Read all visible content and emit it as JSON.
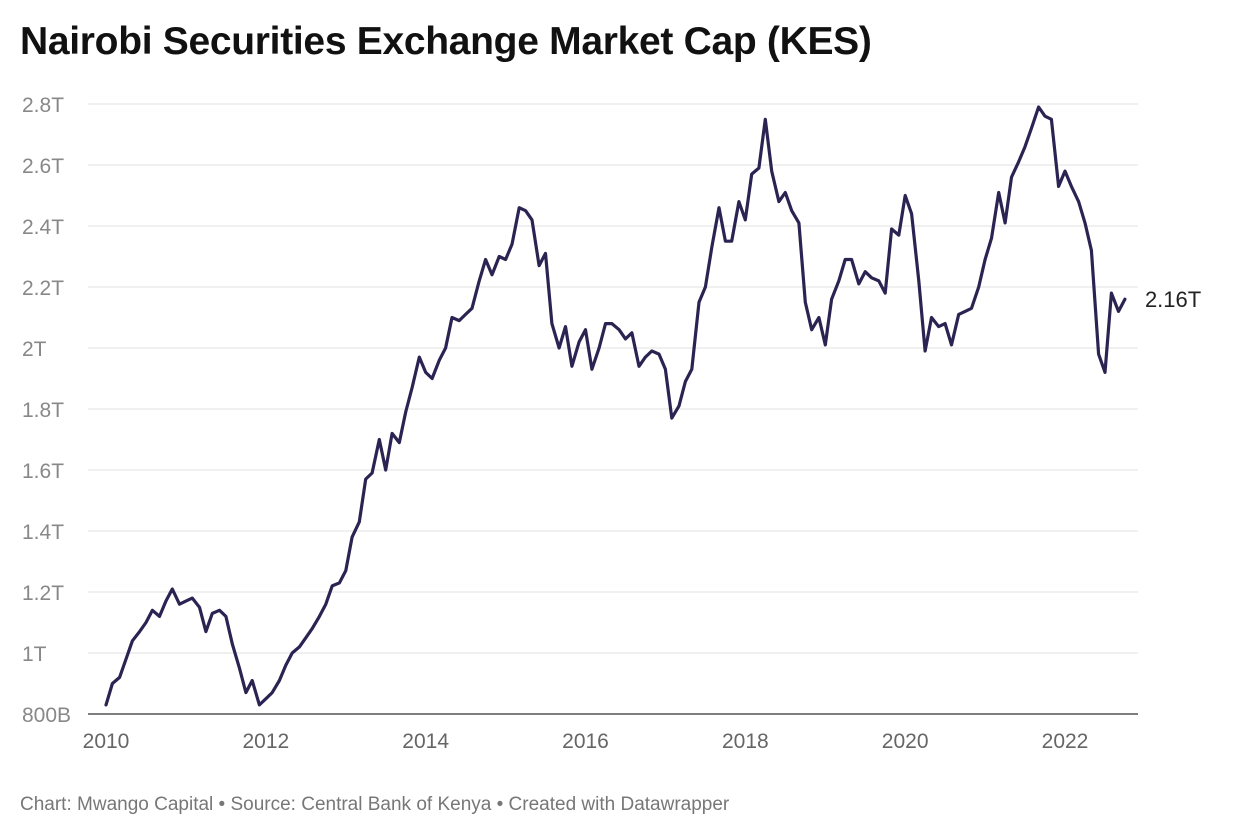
{
  "chart_data": {
    "type": "line",
    "title": "Nairobi Securities Exchange Market Cap (KES)",
    "footer": "Chart: Mwango Capital • Source: Central Bank of Kenya • Created with Datawrapper",
    "xlabel": "",
    "ylabel": "",
    "xlim": [
      2010,
      2023
    ],
    "ylim": [
      0.8,
      2.8
    ],
    "grid": "horizontal",
    "line_color": "#2b2452",
    "y_ticks": [
      {
        "value": 0.8,
        "label": "800B"
      },
      {
        "value": 1.0,
        "label": "1T"
      },
      {
        "value": 1.2,
        "label": "1.2T"
      },
      {
        "value": 1.4,
        "label": "1.4T"
      },
      {
        "value": 1.6,
        "label": "1.6T"
      },
      {
        "value": 1.8,
        "label": "1.8T"
      },
      {
        "value": 2.0,
        "label": "2T"
      },
      {
        "value": 2.2,
        "label": "2.2T"
      },
      {
        "value": 2.4,
        "label": "2.4T"
      },
      {
        "value": 2.6,
        "label": "2.6T"
      },
      {
        "value": 2.8,
        "label": "2.8T"
      }
    ],
    "x_ticks": [
      {
        "value": 2010,
        "label": "2010"
      },
      {
        "value": 2012,
        "label": "2012"
      },
      {
        "value": 2014,
        "label": "2014"
      },
      {
        "value": 2016,
        "label": "2016"
      },
      {
        "value": 2018,
        "label": "2018"
      },
      {
        "value": 2020,
        "label": "2020"
      },
      {
        "value": 2022,
        "label": "2022"
      }
    ],
    "end_label": "2.16T",
    "series": [
      {
        "points": [
          [
            2010.0,
            0.83
          ],
          [
            2010.08,
            0.9
          ],
          [
            2010.17,
            0.92
          ],
          [
            2010.25,
            0.98
          ],
          [
            2010.33,
            1.04
          ],
          [
            2010.42,
            1.07
          ],
          [
            2010.5,
            1.1
          ],
          [
            2010.58,
            1.14
          ],
          [
            2010.67,
            1.12
          ],
          [
            2010.75,
            1.17
          ],
          [
            2010.83,
            1.21
          ],
          [
            2010.92,
            1.16
          ],
          [
            2011.0,
            1.17
          ],
          [
            2011.08,
            1.18
          ],
          [
            2011.17,
            1.15
          ],
          [
            2011.25,
            1.07
          ],
          [
            2011.33,
            1.13
          ],
          [
            2011.42,
            1.14
          ],
          [
            2011.5,
            1.12
          ],
          [
            2011.58,
            1.03
          ],
          [
            2011.67,
            0.95
          ],
          [
            2011.75,
            0.87
          ],
          [
            2011.83,
            0.91
          ],
          [
            2011.92,
            0.83
          ],
          [
            2012.0,
            0.85
          ],
          [
            2012.08,
            0.87
          ],
          [
            2012.17,
            0.91
          ],
          [
            2012.25,
            0.96
          ],
          [
            2012.33,
            1.0
          ],
          [
            2012.42,
            1.02
          ],
          [
            2012.5,
            1.05
          ],
          [
            2012.58,
            1.08
          ],
          [
            2012.67,
            1.12
          ],
          [
            2012.75,
            1.16
          ],
          [
            2012.83,
            1.22
          ],
          [
            2012.92,
            1.23
          ],
          [
            2013.0,
            1.27
          ],
          [
            2013.08,
            1.38
          ],
          [
            2013.17,
            1.43
          ],
          [
            2013.25,
            1.57
          ],
          [
            2013.33,
            1.59
          ],
          [
            2013.42,
            1.7
          ],
          [
            2013.5,
            1.6
          ],
          [
            2013.58,
            1.72
          ],
          [
            2013.67,
            1.69
          ],
          [
            2013.75,
            1.79
          ],
          [
            2013.83,
            1.87
          ],
          [
            2013.92,
            1.97
          ],
          [
            2014.0,
            1.92
          ],
          [
            2014.08,
            1.9
          ],
          [
            2014.17,
            1.96
          ],
          [
            2014.25,
            2.0
          ],
          [
            2014.33,
            2.1
          ],
          [
            2014.42,
            2.09
          ],
          [
            2014.5,
            2.11
          ],
          [
            2014.58,
            2.13
          ],
          [
            2014.67,
            2.22
          ],
          [
            2014.75,
            2.29
          ],
          [
            2014.83,
            2.24
          ],
          [
            2014.92,
            2.3
          ],
          [
            2015.0,
            2.29
          ],
          [
            2015.08,
            2.34
          ],
          [
            2015.17,
            2.46
          ],
          [
            2015.25,
            2.45
          ],
          [
            2015.33,
            2.42
          ],
          [
            2015.42,
            2.27
          ],
          [
            2015.5,
            2.31
          ],
          [
            2015.58,
            2.08
          ],
          [
            2015.67,
            2.0
          ],
          [
            2015.75,
            2.07
          ],
          [
            2015.83,
            1.94
          ],
          [
            2015.92,
            2.02
          ],
          [
            2016.0,
            2.06
          ],
          [
            2016.08,
            1.93
          ],
          [
            2016.17,
            2.0
          ],
          [
            2016.25,
            2.08
          ],
          [
            2016.33,
            2.08
          ],
          [
            2016.42,
            2.06
          ],
          [
            2016.5,
            2.03
          ],
          [
            2016.58,
            2.05
          ],
          [
            2016.67,
            1.94
          ],
          [
            2016.75,
            1.97
          ],
          [
            2016.83,
            1.99
          ],
          [
            2016.92,
            1.98
          ],
          [
            2017.0,
            1.93
          ],
          [
            2017.08,
            1.77
          ],
          [
            2017.17,
            1.81
          ],
          [
            2017.25,
            1.89
          ],
          [
            2017.33,
            1.93
          ],
          [
            2017.42,
            2.15
          ],
          [
            2017.5,
            2.2
          ],
          [
            2017.58,
            2.33
          ],
          [
            2017.67,
            2.46
          ],
          [
            2017.75,
            2.35
          ],
          [
            2017.83,
            2.35
          ],
          [
            2017.92,
            2.48
          ],
          [
            2018.0,
            2.42
          ],
          [
            2018.08,
            2.57
          ],
          [
            2018.17,
            2.59
          ],
          [
            2018.25,
            2.75
          ],
          [
            2018.33,
            2.58
          ],
          [
            2018.42,
            2.48
          ],
          [
            2018.5,
            2.51
          ],
          [
            2018.58,
            2.45
          ],
          [
            2018.67,
            2.41
          ],
          [
            2018.75,
            2.15
          ],
          [
            2018.83,
            2.06
          ],
          [
            2018.92,
            2.1
          ],
          [
            2019.0,
            2.01
          ],
          [
            2019.08,
            2.16
          ],
          [
            2019.17,
            2.22
          ],
          [
            2019.25,
            2.29
          ],
          [
            2019.33,
            2.29
          ],
          [
            2019.42,
            2.21
          ],
          [
            2019.5,
            2.25
          ],
          [
            2019.58,
            2.23
          ],
          [
            2019.67,
            2.22
          ],
          [
            2019.75,
            2.18
          ],
          [
            2019.83,
            2.39
          ],
          [
            2019.92,
            2.37
          ],
          [
            2020.0,
            2.5
          ],
          [
            2020.08,
            2.44
          ],
          [
            2020.17,
            2.22
          ],
          [
            2020.25,
            1.99
          ],
          [
            2020.33,
            2.1
          ],
          [
            2020.42,
            2.07
          ],
          [
            2020.5,
            2.08
          ],
          [
            2020.58,
            2.01
          ],
          [
            2020.67,
            2.11
          ],
          [
            2020.75,
            2.12
          ],
          [
            2020.83,
            2.13
          ],
          [
            2020.92,
            2.2
          ],
          [
            2021.0,
            2.29
          ],
          [
            2021.08,
            2.36
          ],
          [
            2021.17,
            2.51
          ],
          [
            2021.25,
            2.41
          ],
          [
            2021.33,
            2.56
          ],
          [
            2021.42,
            2.61
          ],
          [
            2021.5,
            2.66
          ],
          [
            2021.58,
            2.72
          ],
          [
            2021.67,
            2.79
          ],
          [
            2021.75,
            2.76
          ],
          [
            2021.83,
            2.75
          ],
          [
            2021.92,
            2.53
          ],
          [
            2022.0,
            2.58
          ],
          [
            2022.08,
            2.53
          ],
          [
            2022.17,
            2.48
          ],
          [
            2022.25,
            2.41
          ],
          [
            2022.33,
            2.32
          ],
          [
            2022.42,
            1.98
          ],
          [
            2022.5,
            1.92
          ],
          [
            2022.58,
            2.18
          ],
          [
            2022.67,
            2.12
          ],
          [
            2022.75,
            2.16
          ]
        ]
      }
    ]
  }
}
